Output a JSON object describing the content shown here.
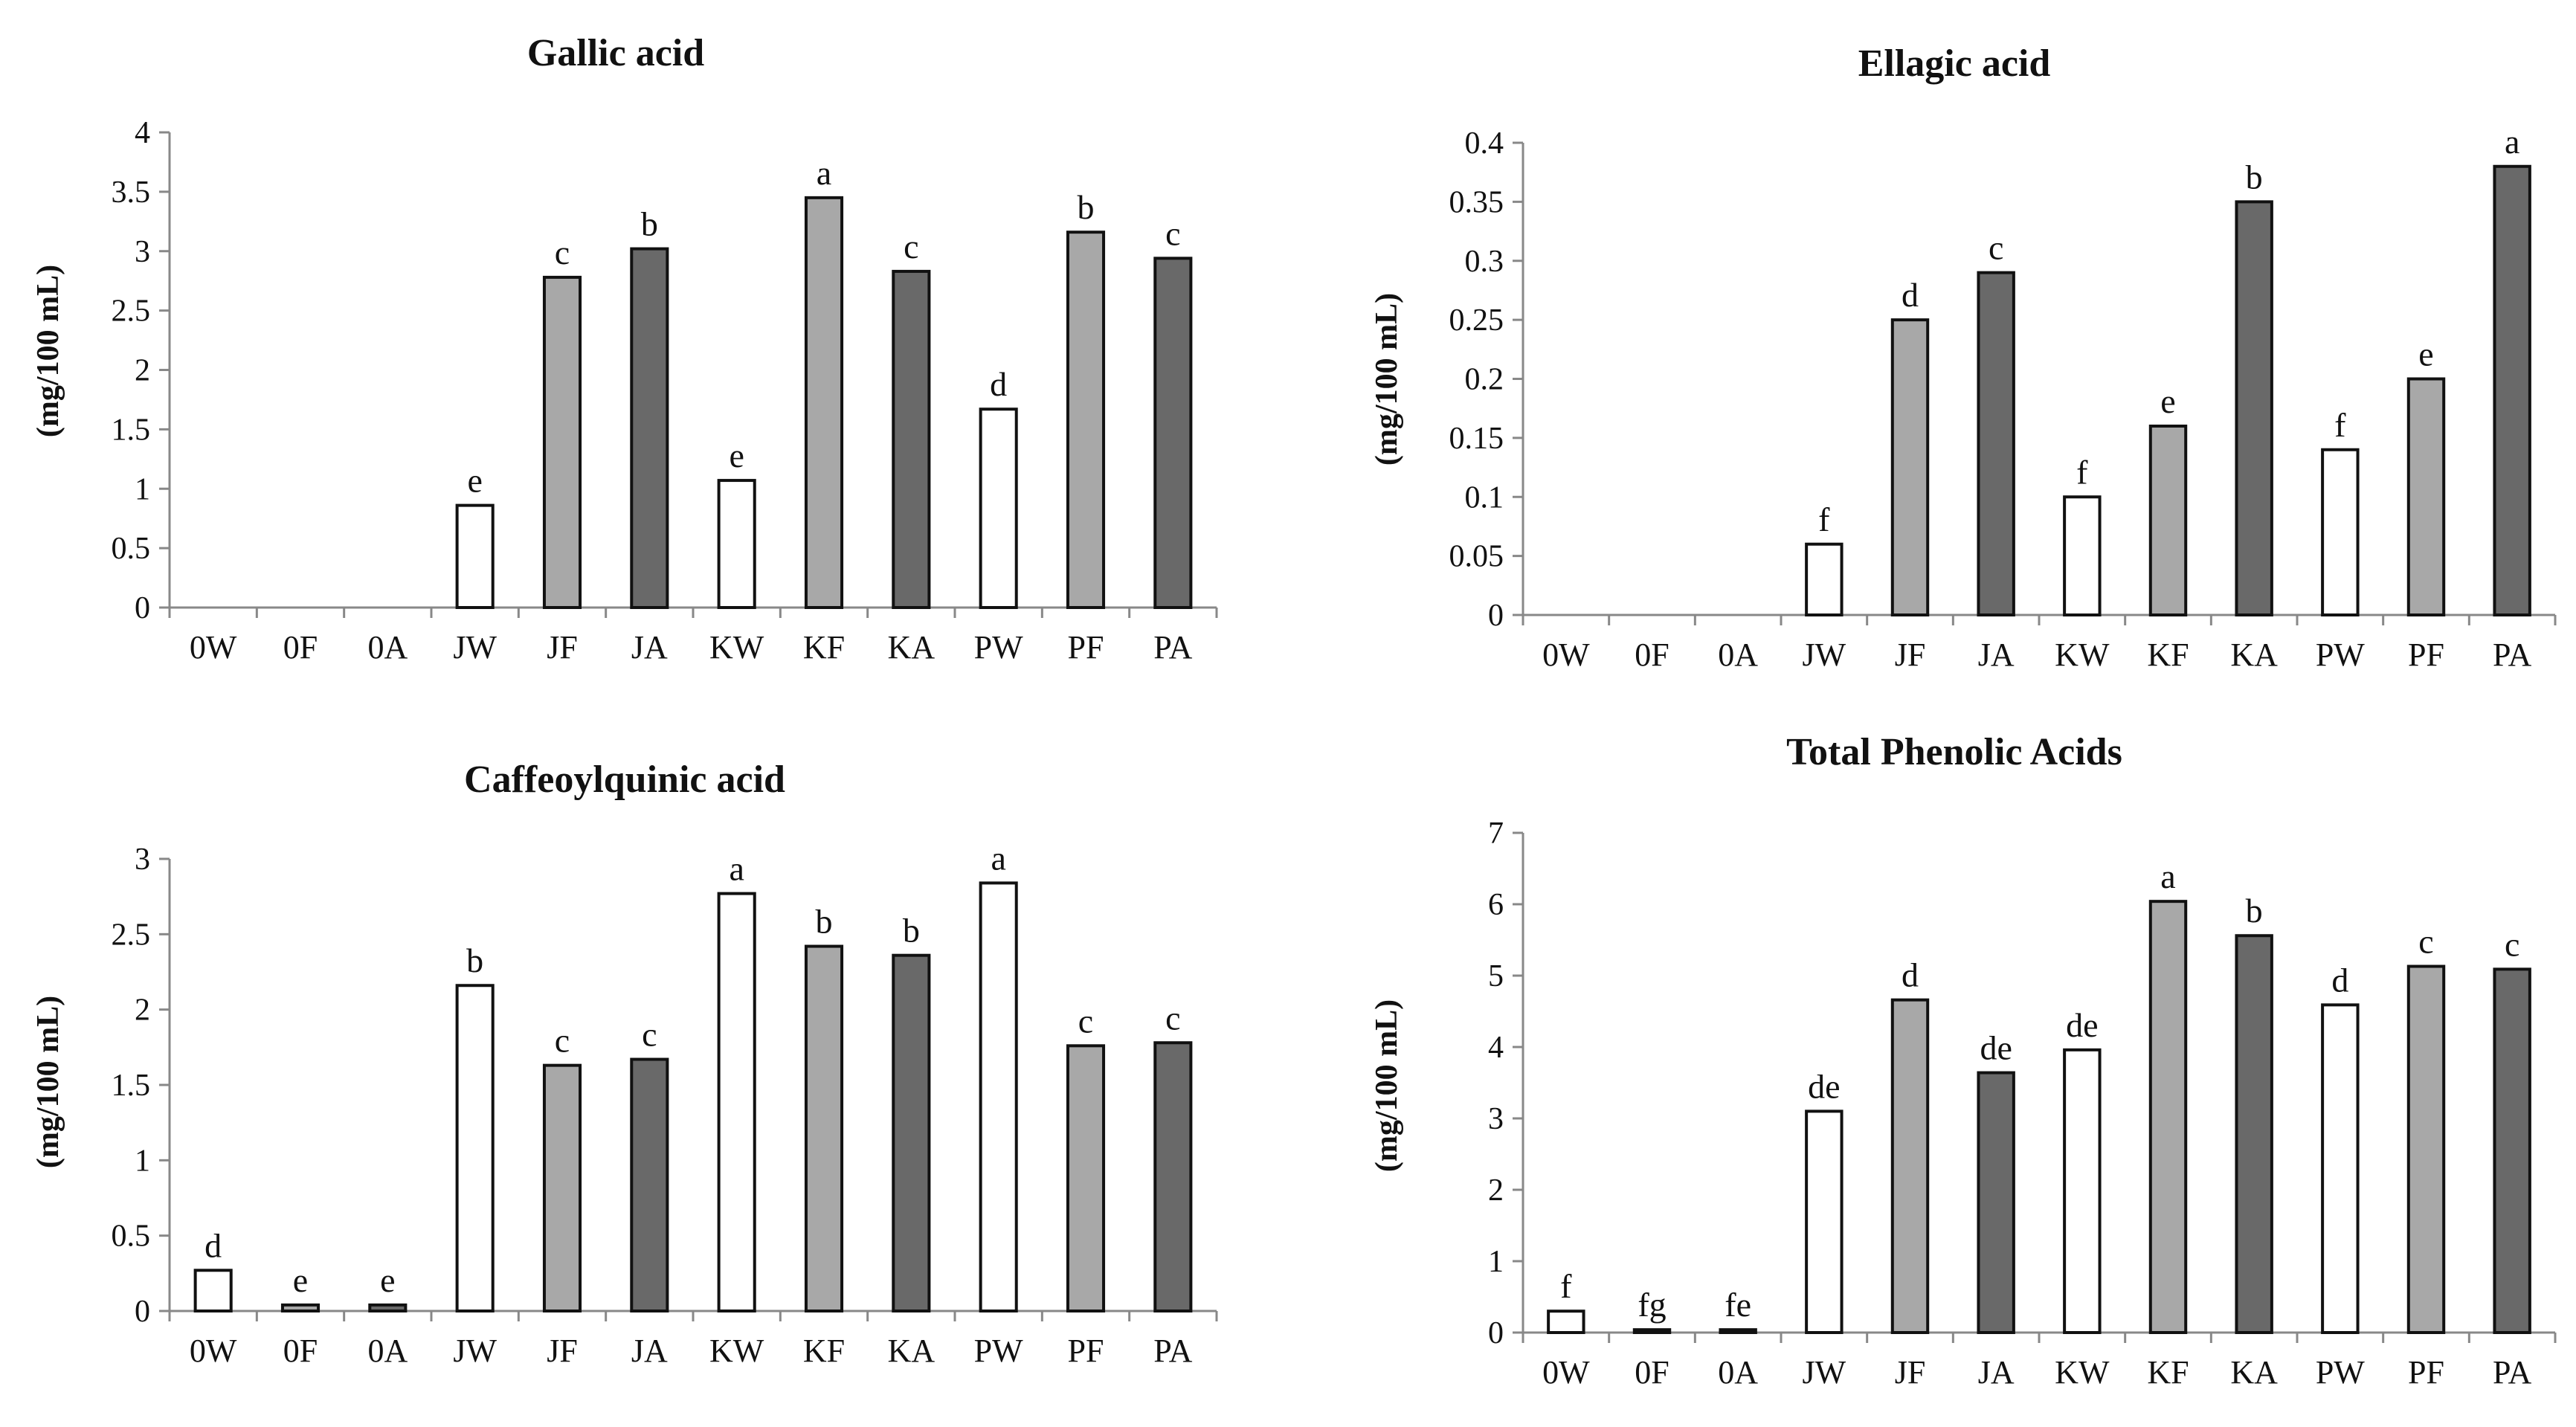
{
  "colors": {
    "W": "#ffffff",
    "F": "#a8a8a8",
    "A": "#696969",
    "stroke": "#111111",
    "axis": "#888888"
  },
  "chart_data": [
    {
      "type": "bar",
      "title": "Gallic acid",
      "xlabel": "",
      "ylabel": "(mg/100 mL)",
      "ylim": [
        0,
        4
      ],
      "yticks": [
        0,
        0.5,
        1,
        1.5,
        2,
        2.5,
        3,
        3.5,
        4
      ],
      "ytick_labels": [
        "0",
        "0.5",
        "1",
        "1.5",
        "2",
        "2.5",
        "3",
        "3.5",
        "4"
      ],
      "grid": false,
      "categories": [
        "0W",
        "0F",
        "0A",
        "JW",
        "JF",
        "JA",
        "KW",
        "KF",
        "KA",
        "PW",
        "PF",
        "PA"
      ],
      "values": [
        0,
        0,
        0,
        0.86,
        2.78,
        3.02,
        1.07,
        3.45,
        2.83,
        1.67,
        3.16,
        2.94
      ],
      "letters": [
        "",
        "",
        "",
        "e",
        "c",
        "b",
        "e",
        "a",
        "c",
        "d",
        "b",
        "c"
      ],
      "fills": [
        "W",
        "F",
        "A",
        "W",
        "F",
        "A",
        "W",
        "F",
        "A",
        "W",
        "F",
        "A"
      ]
    },
    {
      "type": "bar",
      "title": "Ellagic acid",
      "xlabel": "",
      "ylabel": "(mg/100 mL)",
      "ylim": [
        0,
        0.4
      ],
      "yticks": [
        0,
        0.05,
        0.1,
        0.15,
        0.2,
        0.25,
        0.3,
        0.35,
        0.4
      ],
      "ytick_labels": [
        "0",
        "0.05",
        "0.1",
        "0.15",
        "0.2",
        "0.25",
        "0.3",
        "0.35",
        "0.4"
      ],
      "grid": false,
      "categories": [
        "0W",
        "0F",
        "0A",
        "JW",
        "JF",
        "JA",
        "KW",
        "KF",
        "KA",
        "PW",
        "PF",
        "PA"
      ],
      "values": [
        0,
        0,
        0,
        0.06,
        0.25,
        0.29,
        0.1,
        0.16,
        0.35,
        0.14,
        0.2,
        0.38
      ],
      "letters": [
        "",
        "",
        "",
        "f",
        "d",
        "c",
        "f",
        "e",
        "b",
        "f",
        "e",
        "a"
      ],
      "fills": [
        "W",
        "F",
        "A",
        "W",
        "F",
        "A",
        "W",
        "F",
        "A",
        "W",
        "F",
        "A"
      ]
    },
    {
      "type": "bar",
      "title": "Caffeoylquinic acid",
      "xlabel": "",
      "ylabel": "(mg/100 mL)",
      "ylim": [
        0,
        3
      ],
      "yticks": [
        0,
        0.5,
        1,
        1.5,
        2,
        2.5,
        3
      ],
      "ytick_labels": [
        "0",
        "0.5",
        "1",
        "1.5",
        "2",
        "2.5",
        "3"
      ],
      "grid": false,
      "categories": [
        "0W",
        "0F",
        "0A",
        "JW",
        "JF",
        "JA",
        "KW",
        "KF",
        "KA",
        "PW",
        "PF",
        "PA"
      ],
      "values": [
        0.27,
        0.04,
        0.04,
        2.16,
        1.63,
        1.67,
        2.77,
        2.42,
        2.36,
        2.84,
        1.76,
        1.78
      ],
      "letters": [
        "d",
        "e",
        "e",
        "b",
        "c",
        "c",
        "a",
        "b",
        "b",
        "a",
        "c",
        "c"
      ],
      "fills": [
        "W",
        "F",
        "A",
        "W",
        "F",
        "A",
        "W",
        "F",
        "A",
        "W",
        "F",
        "A"
      ]
    },
    {
      "type": "bar",
      "title": "Total Phenolic Acids",
      "xlabel": "",
      "ylabel": "(mg/100 mL)",
      "ylim": [
        0,
        7
      ],
      "yticks": [
        0,
        1,
        2,
        3,
        4,
        5,
        6,
        7
      ],
      "ytick_labels": [
        "0",
        "1",
        "2",
        "3",
        "4",
        "5",
        "6",
        "7"
      ],
      "grid": false,
      "categories": [
        "0W",
        "0F",
        "0A",
        "JW",
        "JF",
        "JA",
        "KW",
        "KF",
        "KA",
        "PW",
        "PF",
        "PA"
      ],
      "values": [
        0.3,
        0.04,
        0.04,
        3.1,
        4.66,
        3.64,
        3.96,
        6.04,
        5.56,
        4.59,
        5.13,
        5.09
      ],
      "letters": [
        "f",
        "fg",
        "fe",
        "de",
        "d",
        "de",
        "de",
        "a",
        "b",
        "d",
        "c",
        "c"
      ],
      "fills": [
        "W",
        "F",
        "A",
        "W",
        "F",
        "A",
        "W",
        "F",
        "A",
        "W",
        "F",
        "A"
      ]
    }
  ]
}
